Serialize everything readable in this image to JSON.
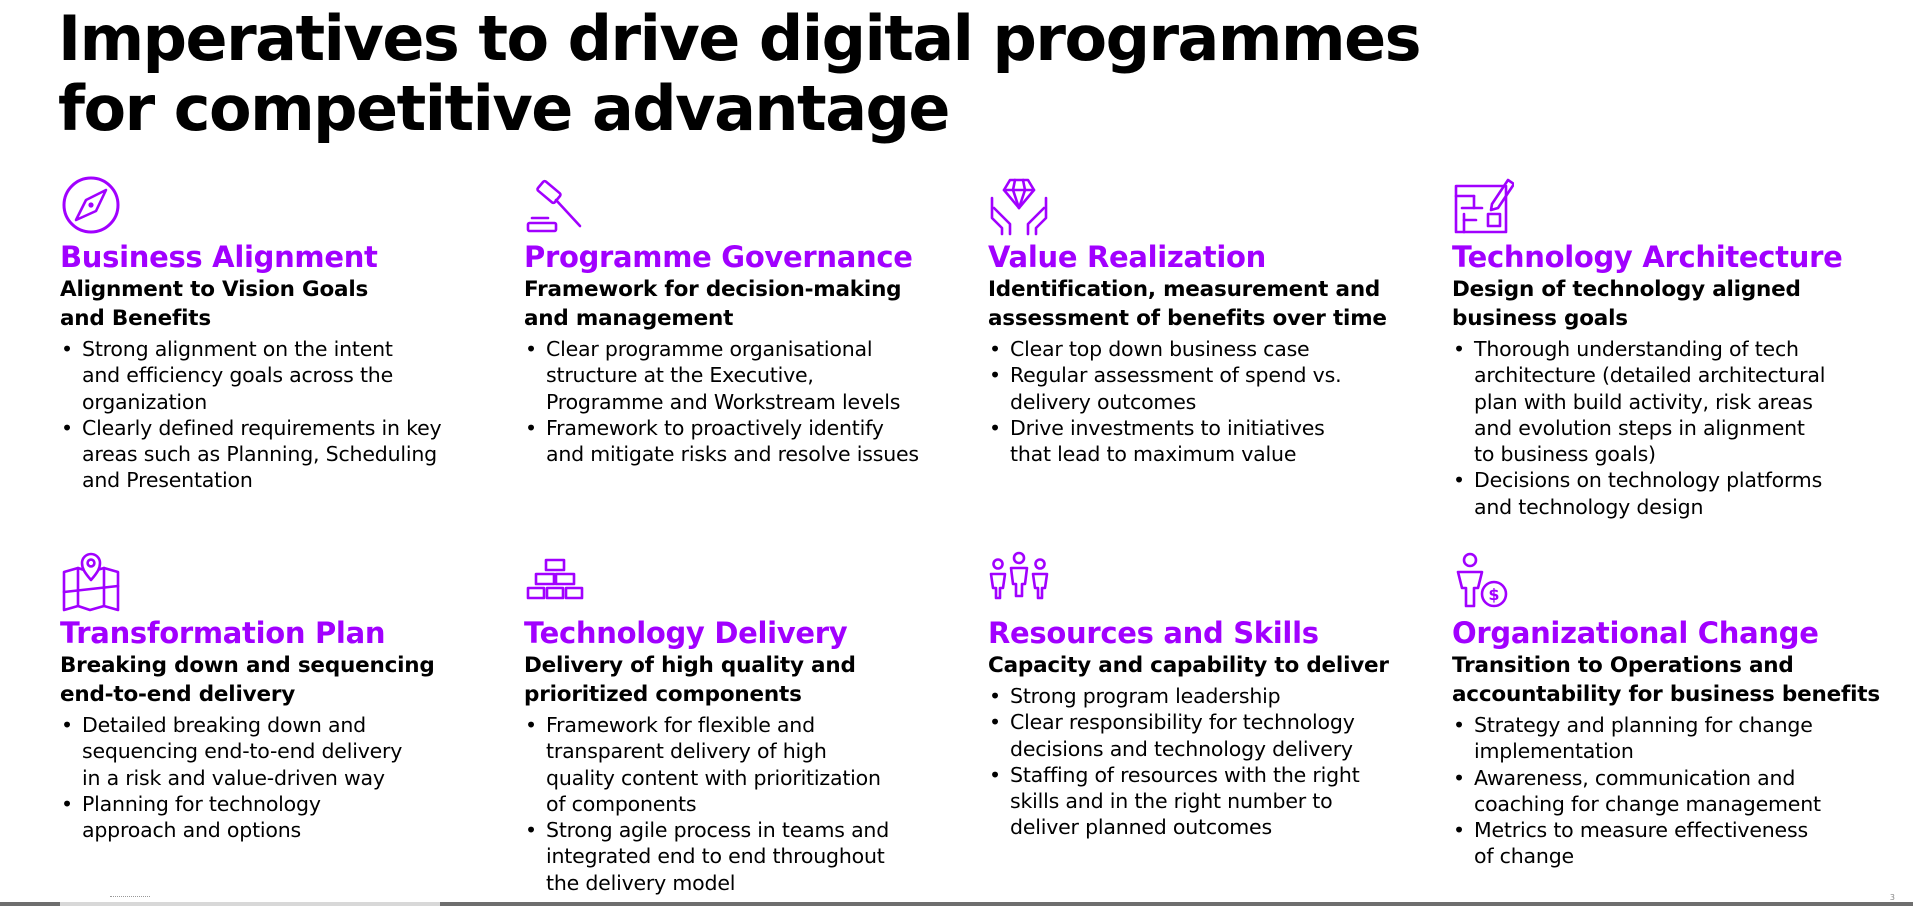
{
  "title": [
    "Imperatives to drive digital programmes",
    "for competitive advantage"
  ],
  "accent_color": "#a100ff",
  "page_number": "3",
  "cards": [
    {
      "icon": "compass-icon",
      "title": "Business Alignment",
      "subtitle": [
        "Alignment to Vision Goals",
        "and Benefits"
      ],
      "bullets": [
        [
          "Strong alignment on the intent",
          "and efficiency goals across the",
          "organization"
        ],
        [
          "Clearly defined requirements in key",
          "areas such as Planning, Scheduling",
          "and Presentation"
        ]
      ]
    },
    {
      "icon": "gavel-icon",
      "title": "Programme Governance",
      "subtitle": [
        "Framework for decision-making",
        "and management"
      ],
      "bullets": [
        [
          "Clear programme organisational",
          "structure at the Executive,",
          "Programme and Workstream levels"
        ],
        [
          "Framework to proactively identify",
          "and mitigate risks and resolve issues"
        ]
      ]
    },
    {
      "icon": "diamond-hands-icon",
      "title": "Value Realization",
      "subtitle": [
        "Identification, measurement and",
        "assessment of benefits over time"
      ],
      "bullets": [
        [
          "Clear top down business case"
        ],
        [
          "Regular assessment of spend vs.",
          "delivery outcomes"
        ],
        [
          "Drive investments to initiatives",
          "that lead to maximum value"
        ]
      ]
    },
    {
      "icon": "blueprint-icon",
      "title": "Technology Architecture",
      "subtitle": [
        "Design of technology aligned",
        "business goals"
      ],
      "bullets": [
        [
          "Thorough understanding of tech",
          "architecture (detailed architectural",
          "plan with build activity, risk areas",
          "and evolution steps in alignment",
          "to business goals)"
        ],
        [
          "Decisions on technology platforms",
          "and technology design"
        ]
      ]
    },
    {
      "icon": "map-pin-icon",
      "title": "Transformation Plan",
      "subtitle": [
        "Breaking down and sequencing",
        "end-to-end delivery"
      ],
      "bullets": [
        [
          "Detailed breaking down and",
          "sequencing end-to-end delivery",
          "in a risk and value-driven way"
        ],
        [
          "Planning for technology",
          "approach and options"
        ]
      ]
    },
    {
      "icon": "bricks-icon",
      "title": "Technology Delivery",
      "subtitle": [
        "Delivery of high quality and",
        "prioritized components"
      ],
      "bullets": [
        [
          "Framework for flexible and",
          "transparent delivery of high",
          "quality content with prioritization",
          "of components"
        ],
        [
          "Strong agile process in teams and",
          "integrated end to end throughout",
          "the delivery model"
        ]
      ]
    },
    {
      "icon": "people-group-icon",
      "title": "Resources and Skills",
      "subtitle": [
        "Capacity and capability to deliver"
      ],
      "bullets": [
        [
          "Strong program leadership"
        ],
        [
          "Clear responsibility for technology",
          "decisions and technology delivery"
        ],
        [
          "Staffing of resources with the right",
          "skills and in the right number to",
          "deliver planned outcomes"
        ]
      ]
    },
    {
      "icon": "person-dollar-icon",
      "title": "Organizational Change",
      "subtitle": [
        "Transition to Operations and",
        "accountability for business benefits"
      ],
      "bullets": [
        [
          "Strategy and planning for change",
          "implementation"
        ],
        [
          "Awareness, communication and",
          "coaching for change management"
        ],
        [
          "Metrics to measure effectiveness",
          "of change"
        ]
      ]
    }
  ]
}
